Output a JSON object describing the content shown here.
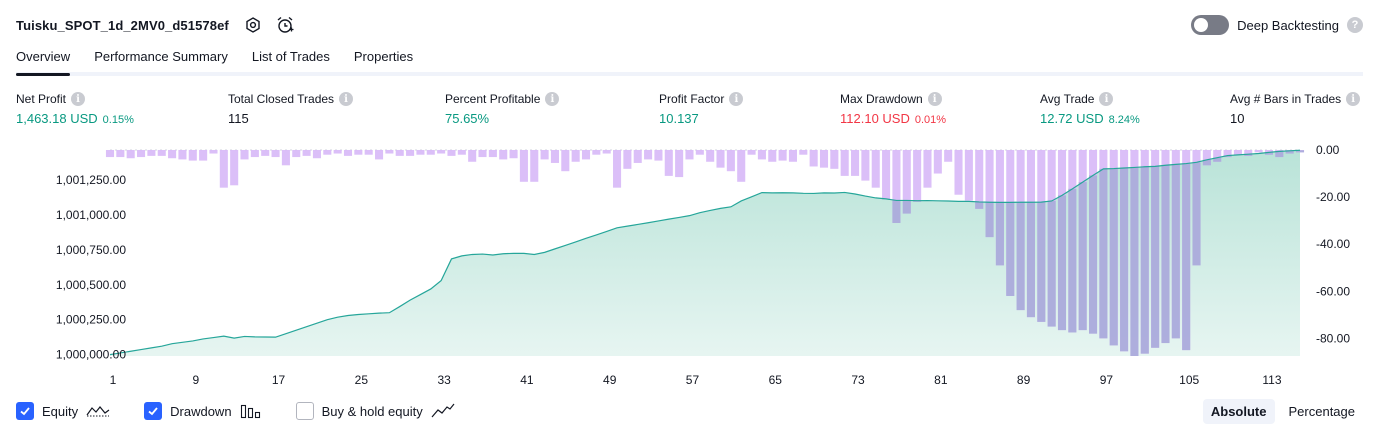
{
  "header": {
    "title": "Tuisku_SPOT_1d_2MV0_d51578ef",
    "icons": [
      "settings-icon",
      "alarm-add-icon"
    ],
    "deep_backtesting_label": "Deep Backtesting",
    "deep_backtesting_enabled": false,
    "help": "?"
  },
  "tabs": [
    {
      "label": "Overview",
      "active": true
    },
    {
      "label": "Performance Summary",
      "active": false
    },
    {
      "label": "List of Trades",
      "active": false
    },
    {
      "label": "Properties",
      "active": false
    }
  ],
  "stats": {
    "info": "i",
    "net_profit": {
      "label": "Net Profit",
      "value": "1,463.18 USD",
      "sub": "0.15%"
    },
    "total_closed_trades": {
      "label": "Total Closed Trades",
      "value": "115"
    },
    "percent_profitable": {
      "label": "Percent Profitable",
      "value": "75.65%"
    },
    "profit_factor": {
      "label": "Profit Factor",
      "value": "10.137"
    },
    "max_drawdown": {
      "label": "Max Drawdown",
      "value": "112.10 USD",
      "sub": "0.01%"
    },
    "avg_trade": {
      "label": "Avg Trade",
      "value": "12.72 USD",
      "sub": "8.24%"
    },
    "avg_bars": {
      "label": "Avg # Bars in Trades",
      "value": "10"
    }
  },
  "colors": {
    "equity_line": "#26a69a",
    "equity_fill": "#b9e3d8",
    "drawdown_bar": "#d7b8f7",
    "drawdown_bar_overlap": "#a8acd9",
    "positive": "#089981",
    "negative": "#f23645",
    "accent": "#2962ff"
  },
  "chart_data": {
    "type": "area",
    "x_ticks": [
      1,
      9,
      17,
      25,
      33,
      41,
      49,
      57,
      65,
      73,
      81,
      89,
      97,
      105,
      113
    ],
    "x_range": [
      1,
      116
    ],
    "left_axis": {
      "ticks": [
        1000000,
        1000250,
        1000500,
        1000750,
        1001000,
        1001250
      ],
      "tick_labels": [
        "1,000,000.00",
        "1,000,250.00",
        "1,000,500.00",
        "1,000,750.00",
        "1,001,000.00",
        "1,001,250.00"
      ],
      "range": [
        999990,
        1001465
      ]
    },
    "right_axis": {
      "ticks": [
        0,
        -20,
        -40,
        -60,
        -80
      ],
      "tick_labels": [
        "0.00",
        "-20.00",
        "-40.00",
        "-60.00",
        "-80.00"
      ],
      "range": [
        -87.5,
        0
      ]
    },
    "series": [
      {
        "name": "Equity",
        "values": [
          1000000,
          1000012,
          1000024,
          1000036,
          1000048,
          1000060,
          1000078,
          1000088,
          1000098,
          1000112,
          1000122,
          1000132,
          1000118,
          1000130,
          1000127,
          1000126,
          1000125,
          1000150,
          1000175,
          1000200,
          1000225,
          1000250,
          1000268,
          1000280,
          1000287,
          1000292,
          1000297,
          1000300,
          1000344,
          1000390,
          1000430,
          1000470,
          1000530,
          1000685,
          1000707,
          1000717,
          1000720,
          1000713,
          1000722,
          1000725,
          1000725,
          1000717,
          1000732,
          1000757,
          1000782,
          1000807,
          1000833,
          1000857,
          1000882,
          1000908,
          1000920,
          1000932,
          1000944,
          1000957,
          1000970,
          1000982,
          1000995,
          1001016,
          1001032,
          1001047,
          1001058,
          1001100,
          1001130,
          1001160,
          1001158,
          1001159,
          1001158,
          1001155,
          1001154,
          1001158,
          1001157,
          1001161,
          1001150,
          1001135,
          1001122,
          1001115,
          1001104,
          1001104,
          1001102,
          1001103,
          1001101,
          1001100,
          1001097,
          1001097,
          1001093,
          1001091,
          1001090,
          1001090,
          1001091,
          1001091,
          1001092,
          1001100,
          1001140,
          1001187,
          1001235,
          1001283,
          1001330,
          1001332,
          1001336,
          1001340,
          1001345,
          1001348,
          1001356,
          1001362,
          1001368,
          1001377,
          1001395,
          1001410,
          1001425,
          1001430,
          1001435,
          1001440,
          1001448,
          1001455,
          1001459,
          1001463
        ]
      },
      {
        "name": "Drawdown",
        "values": [
          -3,
          -3,
          -3.5,
          -3,
          -2.5,
          -2.5,
          -3.5,
          -4,
          -4.5,
          -4.5,
          -1.5,
          -16,
          -15,
          -4,
          -3,
          -2.5,
          -3,
          -6.5,
          -3,
          -2.5,
          -3.5,
          -2,
          -1.5,
          -2.5,
          -2,
          -2,
          -4,
          -1.5,
          -2.5,
          -2.5,
          -2,
          -2,
          -1.5,
          -2.5,
          -2,
          -5,
          -3,
          -3,
          -4,
          -3.5,
          -13.5,
          -13.5,
          -4,
          -5.5,
          -9,
          -5,
          -4,
          -2,
          -1.5,
          -16,
          -8,
          -5.5,
          -4,
          -4.5,
          -11,
          -11.5,
          -4,
          -2,
          -5,
          -7.5,
          -9,
          -13.5,
          -2,
          -4,
          -5,
          -4.5,
          -5,
          -2,
          -7,
          -7.5,
          -8,
          -11,
          -11,
          -13,
          -16,
          -21,
          -31,
          -27,
          -22,
          -16,
          -10,
          -5,
          -19,
          -21.5,
          -25,
          -37,
          -49,
          -62,
          -68,
          -71,
          -73,
          -75,
          -76.5,
          -77.5,
          -76.5,
          -78,
          -80,
          -83,
          -85.5,
          -87.5,
          -86.5,
          -84,
          -82,
          -80,
          -85,
          -49,
          -6.5,
          -5,
          -3,
          -2,
          -2.5,
          -1,
          -2,
          -3,
          -1.5,
          -1
        ]
      }
    ]
  },
  "footer": {
    "equity": {
      "label": "Equity",
      "checked": true
    },
    "drawdown": {
      "label": "Drawdown",
      "checked": true
    },
    "buy_hold": {
      "label": "Buy & hold equity",
      "checked": false
    },
    "absolute_label": "Absolute",
    "percentage_label": "Percentage",
    "mode": "Absolute"
  }
}
